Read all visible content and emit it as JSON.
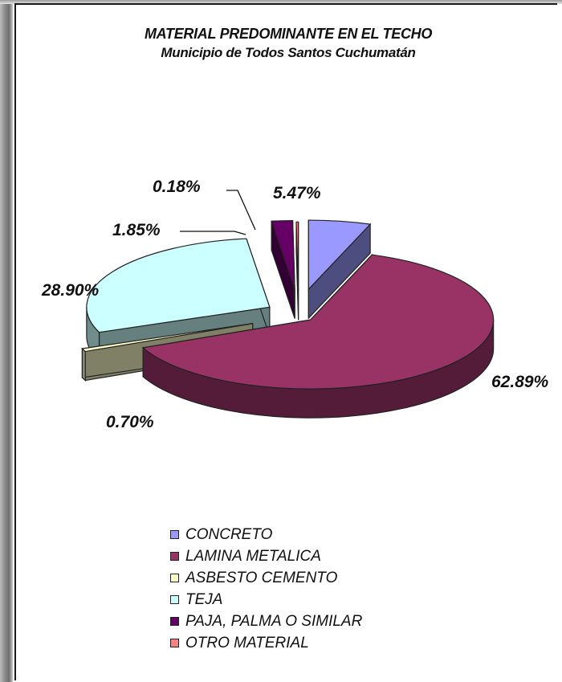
{
  "chart_data": {
    "type": "pie",
    "title": "MATERIAL PREDOMINANTE EN EL TECHO",
    "subtitle": "Municipio de Todos Santos Cuchumatán",
    "categories": [
      "CONCRETO",
      "LAMINA METALICA",
      "ASBESTO CEMENTO",
      "TEJA",
      "PAJA, PALMA O SIMILAR",
      "OTRO MATERIAL"
    ],
    "values": [
      5.47,
      62.89,
      0.7,
      28.9,
      1.85,
      0.18
    ],
    "value_labels": [
      "5.47%",
      "62.89%",
      "0.70%",
      "28.90%",
      "1.85%",
      "0.18%"
    ],
    "colors": [
      "#9999ff",
      "#993366",
      "#ffffcc",
      "#ccffff",
      "#660066",
      "#ff8080"
    ],
    "exploded": true,
    "three_d": true,
    "legend_position": "bottom"
  }
}
